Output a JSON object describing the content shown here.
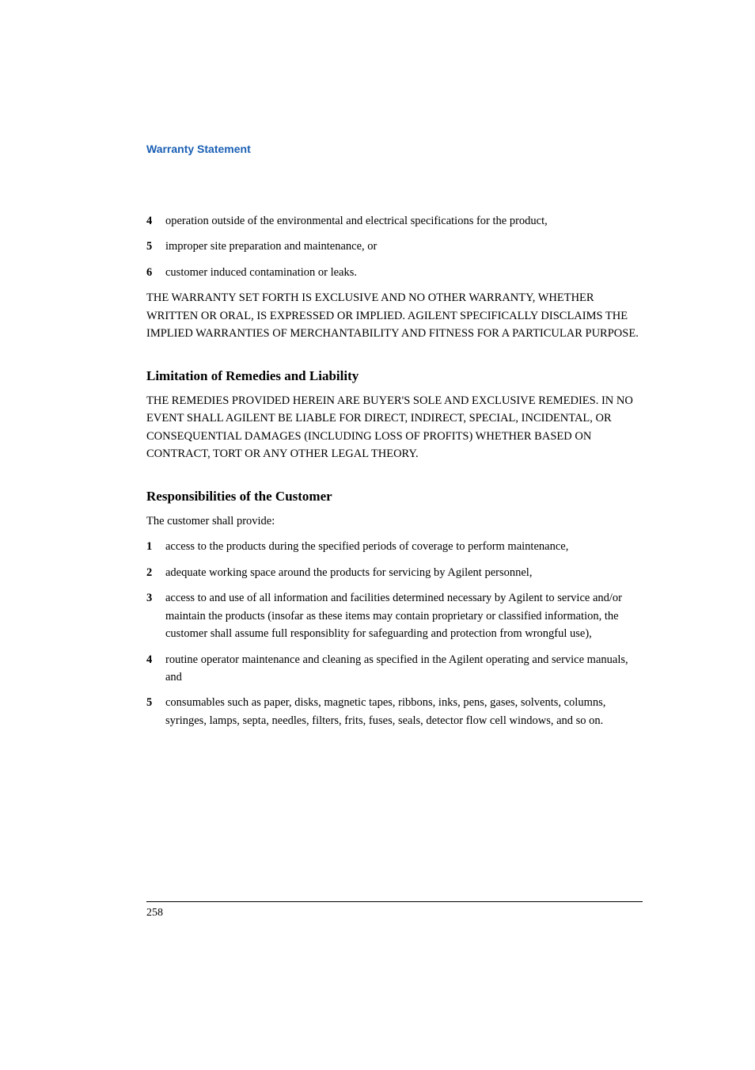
{
  "header": {
    "text": "Warranty Statement",
    "color": "#1a5fb4",
    "fontsize": 14,
    "fontweight": "bold"
  },
  "list1": [
    {
      "num": "4",
      "text": "operation outside of the environmental and electrical specifications for the product,"
    },
    {
      "num": "5",
      "text": "improper site preparation and maintenance, or"
    },
    {
      "num": "6",
      "text": "customer induced contamination or leaks."
    }
  ],
  "warranty_para": "THE WARRANTY SET FORTH IS EXCLUSIVE AND NO OTHER WARRANTY, WHETHER WRITTEN OR ORAL, IS EXPRESSED OR IMPLIED. AGILENT SPECIFICALLY DISCLAIMS THE IMPLIED WARRANTIES OF MERCHANTABILITY AND FITNESS FOR A PARTICULAR PURPOSE.",
  "section1": {
    "heading": "Limitation of Remedies and Liability",
    "body": "THE REMEDIES PROVIDED HEREIN ARE BUYER'S SOLE AND EXCLUSIVE REMEDIES. IN NO EVENT SHALL AGILENT BE LIABLE FOR DIRECT, INDIRECT, SPECIAL, INCIDENTAL, OR CONSEQUENTIAL DAMAGES (INCLUDING LOSS OF PROFITS) WHETHER BASED ON CONTRACT, TORT OR ANY OTHER LEGAL THEORY."
  },
  "section2": {
    "heading": "Responsibilities of the Customer",
    "intro": "The customer shall provide:"
  },
  "list2": [
    {
      "num": "1",
      "text": "access to the products during the specified periods of coverage to perform maintenance,"
    },
    {
      "num": "2",
      "text": "adequate working space around the products for servicing by Agilent personnel,"
    },
    {
      "num": "3",
      "text": "access to and use of all information and facilities determined necessary by Agilent to service and/or maintain the products (insofar as these items may contain proprietary or classified information, the customer shall assume full responsiblity for safeguarding and protection from wrongful use),"
    },
    {
      "num": "4",
      "text": "routine operator maintenance and cleaning as specified in the Agilent operating and service manuals, and"
    },
    {
      "num": "5",
      "text": "consumables such as paper, disks, magnetic tapes, ribbons, inks, pens, gases, solvents, columns, syringes, lamps, septa, needles, filters, frits, fuses, seals, detector flow cell windows, and so on."
    }
  ],
  "footer": {
    "page_number": "258"
  },
  "styles": {
    "body_fontsize": 14.5,
    "heading_fontsize": 17,
    "background_color": "#ffffff",
    "text_color": "#000000",
    "line_height": 1.55
  }
}
